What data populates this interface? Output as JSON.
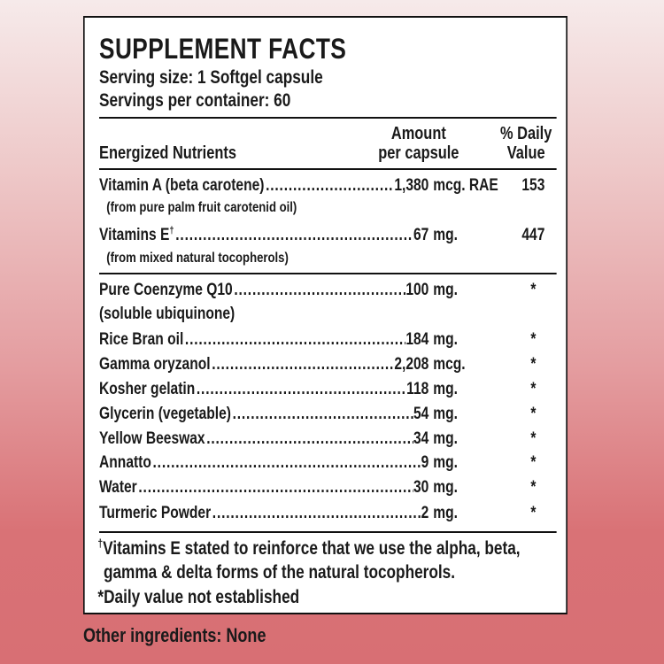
{
  "title": "SUPPLEMENT FACTS",
  "serving_size": "Serving size:  1 Softgel capsule",
  "servings_per_container": "Servings per container: 60",
  "headers": {
    "nutrient": "Energized Nutrients",
    "amount_line1": "Amount",
    "amount_line2": "per capsule",
    "dv_line1": "% Daily",
    "dv_line2": "Value"
  },
  "vitamins": [
    {
      "name": "Vitamin A (beta carotene)",
      "dagger": "",
      "amount": "1,380",
      "unit": "mcg. RAE",
      "dv": "153",
      "note": "(from pure palm fruit carotenid oil)"
    },
    {
      "name": "Vitamins E",
      "dagger": "†",
      "amount": "67",
      "unit": "mg.",
      "dv": "447",
      "note": "(from mixed natural tocopherols)"
    }
  ],
  "ingredients": [
    {
      "name": "Pure Coenzyme Q10",
      "amount": "100",
      "unit": "mg.",
      "dv": "*",
      "note": "(soluble ubiquinone)"
    },
    {
      "name": "Rice Bran oil",
      "amount": "184",
      "unit": "mg.",
      "dv": "*"
    },
    {
      "name": "Gamma oryzanol",
      "amount": "2,208",
      "unit": "mcg.",
      "dv": "*"
    },
    {
      "name": "Kosher gelatin",
      "amount": "118",
      "unit": "mg.",
      "dv": "*"
    },
    {
      "name": "Glycerin (vegetable)",
      "amount": "54",
      "unit": "mg.",
      "dv": "*"
    },
    {
      "name": "Yellow Beeswax",
      "amount": "34",
      "unit": "mg.",
      "dv": "*"
    },
    {
      "name": "Annatto",
      "amount": "9",
      "unit": "mg.",
      "dv": "*"
    },
    {
      "name": "Water",
      "amount": "30",
      "unit": "mg.",
      "dv": "*"
    },
    {
      "name": "Turmeric Powder",
      "amount": "2",
      "unit": "mg.",
      "dv": "*"
    }
  ],
  "footnotes": {
    "dagger_mark": "†",
    "dagger_line1": "Vitamins E stated to reinforce that we use the alpha, beta,",
    "dagger_line2": "gamma & delta forms of the natural tocopherols.",
    "asterisk": "*Daily value not established"
  },
  "other_ingredients": "Other ingredients: None"
}
